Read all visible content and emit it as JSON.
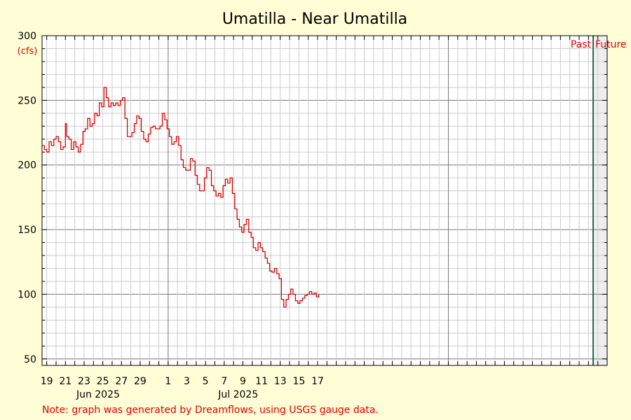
{
  "chart_data": {
    "type": "line",
    "title": "Umatilla - Near Umatilla",
    "unit_label": "(cfs)",
    "past_label": "Past",
    "future_label": "Future",
    "note": "Note: graph was generated by Dreamflows, using USGS gauge data.",
    "x_start_date": "2025-05-18T12:00",
    "x_end_date": "2025-07-18T00:00",
    "now_date": "2025-07-16T12:00",
    "ylim": [
      45,
      300
    ],
    "y_ticks": [
      50,
      100,
      150,
      200,
      250,
      300
    ],
    "x_ticks": [
      {
        "date": "2025-05-19",
        "label": "19"
      },
      {
        "date": "2025-05-21",
        "label": "21"
      },
      {
        "date": "2025-05-23",
        "label": "23"
      },
      {
        "date": "2025-05-25",
        "label": "25"
      },
      {
        "date": "2025-05-27",
        "label": "27"
      },
      {
        "date": "2025-05-29",
        "label": "29"
      },
      {
        "date": "2025-06-01",
        "label": "1"
      },
      {
        "date": "2025-06-03",
        "label": "3"
      },
      {
        "date": "2025-06-05",
        "label": "5"
      },
      {
        "date": "2025-06-07",
        "label": "7"
      },
      {
        "date": "2025-06-09",
        "label": "9"
      },
      {
        "date": "2025-06-11",
        "label": "11"
      },
      {
        "date": "2025-06-13",
        "label": "13"
      },
      {
        "date": "2025-06-15",
        "label": "15"
      },
      {
        "date": "2025-06-17",
        "label": "17"
      }
    ],
    "month_labels": [
      {
        "date": "2025-05-24T12:00",
        "label": "Jun 2025"
      },
      {
        "date": "2025-06-08T12:00",
        "label": "Jul 2025"
      }
    ],
    "x_ticks_note": "",
    "colors": {
      "line": "#e00000",
      "background": "#fffed6",
      "plot_bg": "#ffffff",
      "future_bg": "#eeeeee",
      "now_line": "#1f6b4f",
      "grid_minor": "#cccccc",
      "grid_major": "#777777"
    },
    "series": [
      {
        "values": [
          [
            "2025-05-18T12:00",
            215
          ],
          [
            "2025-05-18T18:00",
            212
          ],
          [
            "2025-05-19T00:00",
            210
          ],
          [
            "2025-05-19T06:00",
            218
          ],
          [
            "2025-05-19T12:00",
            215
          ],
          [
            "2025-05-19T18:00",
            220
          ],
          [
            "2025-05-20T00:00",
            222
          ],
          [
            "2025-05-20T06:00",
            218
          ],
          [
            "2025-05-20T12:00",
            212
          ],
          [
            "2025-05-20T18:00",
            214
          ],
          [
            "2025-05-21T00:00",
            232
          ],
          [
            "2025-05-21T03:00",
            222
          ],
          [
            "2025-05-21T09:00",
            220
          ],
          [
            "2025-05-21T15:00",
            212
          ],
          [
            "2025-05-21T21:00",
            218
          ],
          [
            "2025-05-22T03:00",
            214
          ],
          [
            "2025-05-22T09:00",
            210
          ],
          [
            "2025-05-22T15:00",
            216
          ],
          [
            "2025-05-22T21:00",
            226
          ],
          [
            "2025-05-23T03:00",
            228
          ],
          [
            "2025-05-23T09:00",
            236
          ],
          [
            "2025-05-23T15:00",
            230
          ],
          [
            "2025-05-23T21:00",
            232
          ],
          [
            "2025-05-24T03:00",
            240
          ],
          [
            "2025-05-24T09:00",
            238
          ],
          [
            "2025-05-24T15:00",
            248
          ],
          [
            "2025-05-24T21:00",
            245
          ],
          [
            "2025-05-25T03:00",
            260
          ],
          [
            "2025-05-25T09:00",
            252
          ],
          [
            "2025-05-25T15:00",
            245
          ],
          [
            "2025-05-25T21:00",
            248
          ],
          [
            "2025-05-26T03:00",
            246
          ],
          [
            "2025-05-26T09:00",
            248
          ],
          [
            "2025-05-26T15:00",
            246
          ],
          [
            "2025-05-26T21:00",
            250
          ],
          [
            "2025-05-27T03:00",
            252
          ],
          [
            "2025-05-27T09:00",
            236
          ],
          [
            "2025-05-27T15:00",
            222
          ],
          [
            "2025-05-27T21:00",
            222
          ],
          [
            "2025-05-28T03:00",
            225
          ],
          [
            "2025-05-28T09:00",
            232
          ],
          [
            "2025-05-28T15:00",
            238
          ],
          [
            "2025-05-28T21:00",
            236
          ],
          [
            "2025-05-29T03:00",
            226
          ],
          [
            "2025-05-29T09:00",
            220
          ],
          [
            "2025-05-29T15:00",
            218
          ],
          [
            "2025-05-29T21:00",
            224
          ],
          [
            "2025-05-30T03:00",
            229
          ],
          [
            "2025-05-30T09:00",
            230
          ],
          [
            "2025-05-30T15:00",
            228
          ],
          [
            "2025-05-30T21:00",
            228
          ],
          [
            "2025-05-31T03:00",
            230
          ],
          [
            "2025-05-31T09:00",
            240
          ],
          [
            "2025-05-31T15:00",
            235
          ],
          [
            "2025-05-31T21:00",
            228
          ],
          [
            "2025-06-01T03:00",
            222
          ],
          [
            "2025-06-01T09:00",
            216
          ],
          [
            "2025-06-01T15:00",
            218
          ],
          [
            "2025-06-01T21:00",
            222
          ],
          [
            "2025-06-02T03:00",
            215
          ],
          [
            "2025-06-02T09:00",
            204
          ],
          [
            "2025-06-02T15:00",
            198
          ],
          [
            "2025-06-02T21:00",
            196
          ],
          [
            "2025-06-03T03:00",
            196
          ],
          [
            "2025-06-03T09:00",
            205
          ],
          [
            "2025-06-03T15:00",
            203
          ],
          [
            "2025-06-03T21:00",
            192
          ],
          [
            "2025-06-04T03:00",
            185
          ],
          [
            "2025-06-04T09:00",
            180
          ],
          [
            "2025-06-04T15:00",
            180
          ],
          [
            "2025-06-04T21:00",
            190
          ],
          [
            "2025-06-05T03:00",
            198
          ],
          [
            "2025-06-05T09:00",
            196
          ],
          [
            "2025-06-05T15:00",
            184
          ],
          [
            "2025-06-05T21:00",
            180
          ],
          [
            "2025-06-06T03:00",
            176
          ],
          [
            "2025-06-06T09:00",
            178
          ],
          [
            "2025-06-06T15:00",
            175
          ],
          [
            "2025-06-06T21:00",
            184
          ],
          [
            "2025-06-07T03:00",
            189
          ],
          [
            "2025-06-07T09:00",
            186
          ],
          [
            "2025-06-07T15:00",
            190
          ],
          [
            "2025-06-07T21:00",
            178
          ],
          [
            "2025-06-08T03:00",
            166
          ],
          [
            "2025-06-08T09:00",
            158
          ],
          [
            "2025-06-08T15:00",
            152
          ],
          [
            "2025-06-08T21:00",
            148
          ],
          [
            "2025-06-09T03:00",
            154
          ],
          [
            "2025-06-09T09:00",
            158
          ],
          [
            "2025-06-09T15:00",
            148
          ],
          [
            "2025-06-09T21:00",
            144
          ],
          [
            "2025-06-10T03:00",
            136
          ],
          [
            "2025-06-10T09:00",
            134
          ],
          [
            "2025-06-10T15:00",
            140
          ],
          [
            "2025-06-10T21:00",
            136
          ],
          [
            "2025-06-11T03:00",
            133
          ],
          [
            "2025-06-11T09:00",
            128
          ],
          [
            "2025-06-11T15:00",
            124
          ],
          [
            "2025-06-11T21:00",
            118
          ],
          [
            "2025-06-12T03:00",
            117
          ],
          [
            "2025-06-12T09:00",
            120
          ],
          [
            "2025-06-12T15:00",
            116
          ],
          [
            "2025-06-12T21:00",
            112
          ],
          [
            "2025-06-13T03:00",
            96
          ],
          [
            "2025-06-13T09:00",
            90
          ],
          [
            "2025-06-13T15:00",
            96
          ],
          [
            "2025-06-13T21:00",
            100
          ],
          [
            "2025-06-14T03:00",
            104
          ],
          [
            "2025-06-14T09:00",
            100
          ],
          [
            "2025-06-14T15:00",
            95
          ],
          [
            "2025-06-14T21:00",
            93
          ],
          [
            "2025-06-15T03:00",
            95
          ],
          [
            "2025-06-15T09:00",
            97
          ],
          [
            "2025-06-15T15:00",
            99
          ],
          [
            "2025-06-15T21:00",
            100
          ],
          [
            "2025-06-16T03:00",
            102
          ],
          [
            "2025-06-16T09:00",
            100
          ],
          [
            "2025-06-16T15:00",
            101
          ],
          [
            "2025-06-16T21:00",
            98
          ],
          [
            "2025-06-17T03:00",
            100
          ]
        ]
      }
    ]
  }
}
